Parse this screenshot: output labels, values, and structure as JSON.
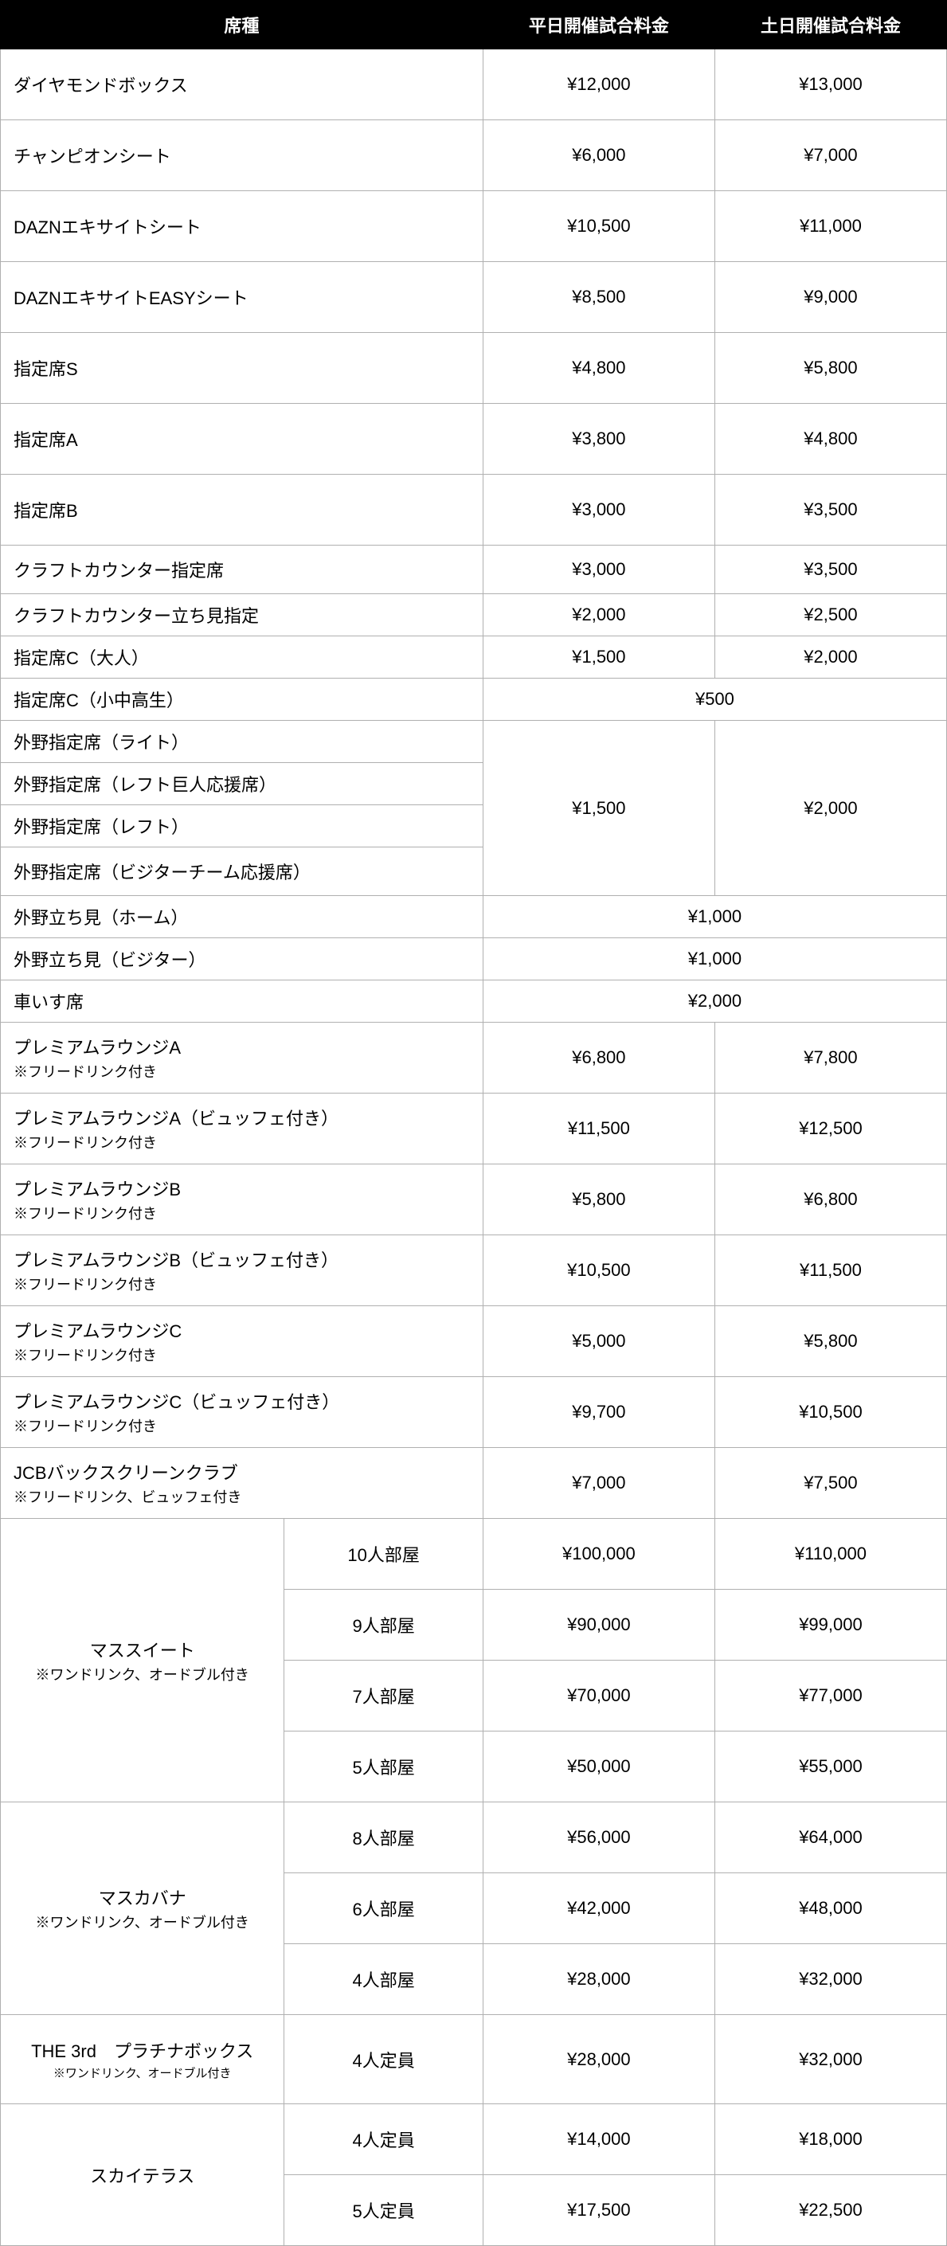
{
  "table": {
    "headers": {
      "seat_type": "席種",
      "weekday": "平日開催試合料金",
      "weekend": "土日開催試合料金"
    },
    "col_widths": [
      "30%",
      "21%",
      "24.5%",
      "24.5%"
    ],
    "header_bg": "#000000",
    "header_fg": "#ffffff",
    "border_color": "#b0b0b0",
    "rows": [
      {
        "type": "simple",
        "tall": true,
        "name": "ダイヤモンドボックス",
        "weekday": "¥12,000",
        "weekend": "¥13,000"
      },
      {
        "type": "simple",
        "tall": true,
        "name": "チャンピオンシート",
        "weekday": "¥6,000",
        "weekend": "¥7,000"
      },
      {
        "type": "simple",
        "tall": true,
        "name": "DAZNエキサイトシート",
        "weekday": "¥10,500",
        "weekend": "¥11,000"
      },
      {
        "type": "simple",
        "tall": true,
        "name": "DAZNエキサイトEASYシート",
        "weekday": "¥8,500",
        "weekend": "¥9,000"
      },
      {
        "type": "simple",
        "tall": true,
        "name": "指定席S",
        "weekday": "¥4,800",
        "weekend": "¥5,800"
      },
      {
        "type": "simple",
        "tall": true,
        "name": "指定席A",
        "weekday": "¥3,800",
        "weekend": "¥4,800"
      },
      {
        "type": "simple",
        "tall": true,
        "name": "指定席B",
        "weekday": "¥3,000",
        "weekend": "¥3,500"
      },
      {
        "type": "simple",
        "name": "クラフトカウンター指定席",
        "weekday": "¥3,000",
        "weekend": "¥3,500"
      },
      {
        "type": "simple",
        "short": true,
        "name": "クラフトカウンター立ち見指定",
        "weekday": "¥2,000",
        "weekend": "¥2,500"
      },
      {
        "type": "simple",
        "short": true,
        "name": "指定席C（大人）",
        "weekday": "¥1,500",
        "weekend": "¥2,000"
      },
      {
        "type": "merged_price",
        "short": true,
        "name": "指定席C（小中高生）",
        "price": "¥500"
      },
      {
        "type": "group_price_start",
        "short": true,
        "name": "外野指定席（ライト）",
        "weekday": "¥1,500",
        "weekend": "¥2,000",
        "rowspan": 4
      },
      {
        "type": "group_price_cont",
        "short": true,
        "name": "外野指定席（レフト巨人応援席）"
      },
      {
        "type": "group_price_cont",
        "short": true,
        "name": "外野指定席（レフト）"
      },
      {
        "type": "group_price_cont",
        "name": "外野指定席（ビジターチーム応援席）"
      },
      {
        "type": "merged_price",
        "short": true,
        "name": "外野立ち見（ホーム）",
        "price": "¥1,000"
      },
      {
        "type": "merged_price",
        "short": true,
        "name": "外野立ち見（ビジター）",
        "price": "¥1,000"
      },
      {
        "type": "merged_price",
        "short": true,
        "name": "車いす席",
        "price": "¥2,000"
      },
      {
        "type": "simple",
        "name": "プレミアムラウンジA",
        "note": "※フリードリンク付き",
        "weekday": "¥6,800",
        "weekend": "¥7,800"
      },
      {
        "type": "simple",
        "name": "プレミアムラウンジA（ビュッフェ付き）",
        "note": "※フリードリンク付き",
        "weekday": "¥11,500",
        "weekend": "¥12,500"
      },
      {
        "type": "simple",
        "name": "プレミアムラウンジB",
        "note": "※フリードリンク付き",
        "weekday": "¥5,800",
        "weekend": "¥6,800"
      },
      {
        "type": "simple",
        "name": "プレミアムラウンジB（ビュッフェ付き）",
        "note": "※フリードリンク付き",
        "weekday": "¥10,500",
        "weekend": "¥11,500"
      },
      {
        "type": "simple",
        "name": "プレミアムラウンジC",
        "note": "※フリードリンク付き",
        "weekday": "¥5,000",
        "weekend": "¥5,800"
      },
      {
        "type": "simple",
        "name": "プレミアムラウンジC（ビュッフェ付き）",
        "note": "※フリードリンク付き",
        "weekday": "¥9,700",
        "weekend": "¥10,500"
      },
      {
        "type": "simple",
        "name": "JCBバックスクリーンクラブ",
        "note": "※フリードリンク、ビュッフェ付き",
        "weekday": "¥7,000",
        "weekend": "¥7,500"
      },
      {
        "type": "group_start",
        "tall": true,
        "group": "マススイート",
        "group_note": "※ワンドリンク、オードブル付き",
        "rowspan": 4,
        "sub": "10人部屋",
        "weekday": "¥100,000",
        "weekend": "¥110,000"
      },
      {
        "type": "group_cont",
        "tall": true,
        "sub": "9人部屋",
        "weekday": "¥90,000",
        "weekend": "¥99,000"
      },
      {
        "type": "group_cont",
        "tall": true,
        "sub": "7人部屋",
        "weekday": "¥70,000",
        "weekend": "¥77,000"
      },
      {
        "type": "group_cont",
        "tall": true,
        "sub": "5人部屋",
        "weekday": "¥50,000",
        "weekend": "¥55,000"
      },
      {
        "type": "group_start",
        "tall": true,
        "group": "マスカバナ",
        "group_note": "※ワンドリンク、オードブル付き",
        "rowspan": 3,
        "sub": "8人部屋",
        "weekday": "¥56,000",
        "weekend": "¥64,000"
      },
      {
        "type": "group_cont",
        "tall": true,
        "sub": "6人部屋",
        "weekday": "¥42,000",
        "weekend": "¥48,000"
      },
      {
        "type": "group_cont",
        "tall": true,
        "sub": "4人部屋",
        "weekday": "¥28,000",
        "weekend": "¥32,000"
      },
      {
        "type": "group_start",
        "tall": true,
        "group": "THE 3rd　プラチナボックス",
        "group_note": "※ワンドリンク、オードブル付き",
        "group_note_small": true,
        "rowspan": 1,
        "sub": "4人定員",
        "weekday": "¥28,000",
        "weekend": "¥32,000"
      },
      {
        "type": "group_start",
        "tall": true,
        "group": "スカイテラス",
        "rowspan": 2,
        "sub": "4人定員",
        "weekday": "¥14,000",
        "weekend": "¥18,000"
      },
      {
        "type": "group_cont",
        "tall": true,
        "sub": "5人定員",
        "weekday": "¥17,500",
        "weekend": "¥22,500"
      }
    ]
  }
}
